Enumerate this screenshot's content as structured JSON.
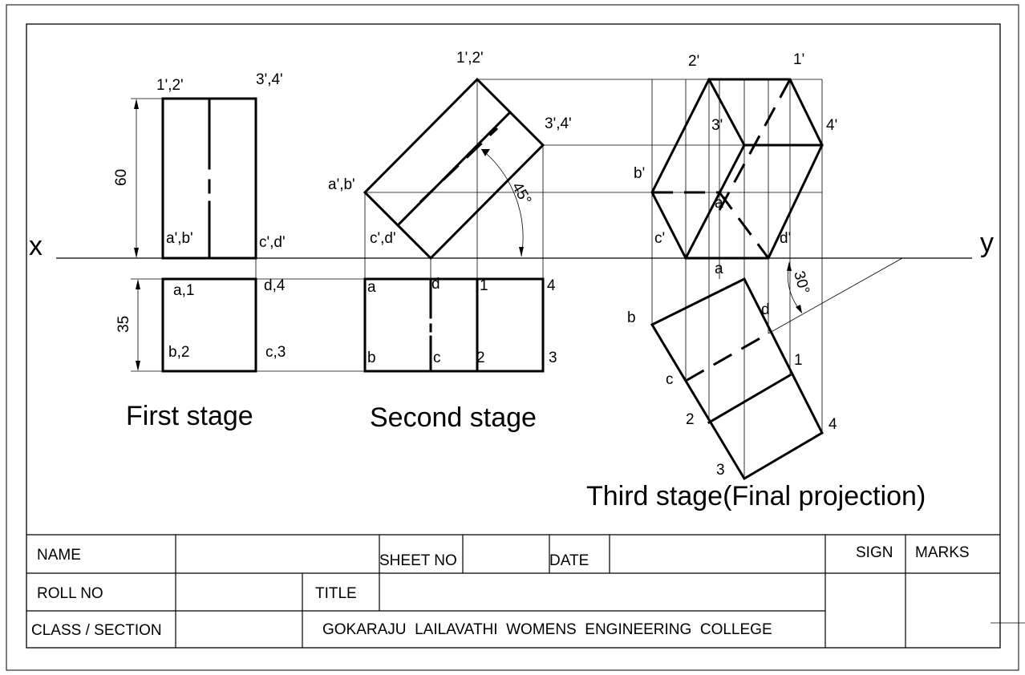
{
  "drawing": {
    "x_label": "x",
    "y_label": "y",
    "stage1": {
      "title": "First stage",
      "dim_height": "60",
      "dim_depth": "35",
      "fv_top_left": "1',2'",
      "fv_top_right": "3',4'",
      "fv_bottom_left": "a',b'",
      "fv_bottom_right": "c',d'",
      "tv_top_left": "a,1",
      "tv_top_right": "d,4",
      "tv_bottom_left": "b,2",
      "tv_bottom_right": "c,3"
    },
    "stage2": {
      "title": "Second stage",
      "angle": "45°",
      "fv_top": "1',2'",
      "fv_right": "3',4'",
      "fv_left": "a',b'",
      "fv_bottom": "c',d'",
      "tv_a": "a",
      "tv_d": "d",
      "tv_1": "1",
      "tv_4": "4",
      "tv_b": "b",
      "tv_c": "c",
      "tv_2": "2",
      "tv_3": "3"
    },
    "stage3": {
      "title": "Third stage(Final projection)",
      "angle": "30°",
      "fv_2": "2'",
      "fv_1": "1'",
      "fv_3": "3'",
      "fv_4": "4'",
      "fv_b": "b'",
      "fv_a": "a'",
      "fv_c": "c'",
      "fv_d": "d'",
      "tv_a": "a",
      "tv_b": "b",
      "tv_d": "d",
      "tv_1": "1",
      "tv_c": "c",
      "tv_2": "2",
      "tv_4": "4",
      "tv_3": "3"
    }
  },
  "title_block": {
    "name_label": "NAME",
    "sheet_no_label": "SHEET NO",
    "date_label": "DATE",
    "sign_label": "SIGN",
    "marks_label": "MARKS",
    "roll_no_label": "ROLL NO",
    "title_label": "TITLE",
    "class_section_label": "CLASS / SECTION",
    "college": "GOKARAJU  LAILAVATHI  WOMENS  ENGINEERING  COLLEGE"
  }
}
